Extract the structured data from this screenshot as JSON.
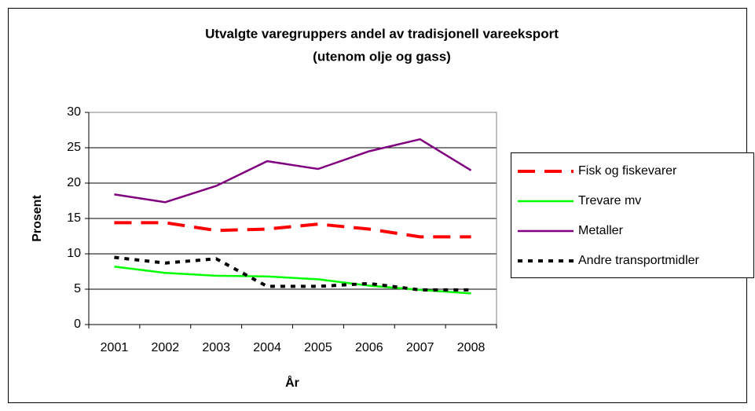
{
  "chart_data": {
    "type": "line",
    "title": [
      "Utvalgte varegruppers andel av tradisjonell vareeksport",
      "(utenom olje og gass)"
    ],
    "x_label": "År",
    "y_label": "Prosent",
    "categories": [
      "2001",
      "2002",
      "2003",
      "2004",
      "2005",
      "2006",
      "2007",
      "2008"
    ],
    "series": [
      {
        "name": "Fisk og fiskevarer",
        "color": "#ff0000",
        "dash": "22,12",
        "values": [
          14.4,
          14.4,
          13.3,
          13.5,
          14.2,
          13.5,
          12.4,
          12.4
        ]
      },
      {
        "name": "Trevare mv",
        "color": "#00ff00",
        "dash": "none",
        "values": [
          8.2,
          7.3,
          6.9,
          6.8,
          6.4,
          5.5,
          4.9,
          4.4
        ]
      },
      {
        "name": "Metaller",
        "color": "#800080",
        "dash": "none",
        "values": [
          18.4,
          17.3,
          19.6,
          23.1,
          22.0,
          24.5,
          26.2,
          21.8
        ]
      },
      {
        "name": "Andre transportmidler",
        "color": "#000000",
        "dash": "6,7",
        "values": [
          9.5,
          8.7,
          9.3,
          5.4,
          5.4,
          5.8,
          4.9,
          4.9
        ]
      }
    ],
    "ylim": [
      0,
      30
    ],
    "yticks": [
      0,
      5,
      10,
      15,
      20,
      25,
      30
    ],
    "grid": true
  }
}
